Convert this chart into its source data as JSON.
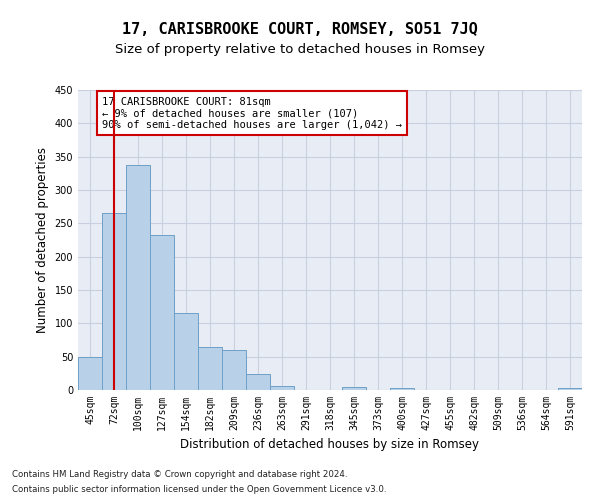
{
  "title": "17, CARISBROOKE COURT, ROMSEY, SO51 7JQ",
  "subtitle": "Size of property relative to detached houses in Romsey",
  "xlabel": "Distribution of detached houses by size in Romsey",
  "ylabel": "Number of detached properties",
  "footnote1": "Contains HM Land Registry data © Crown copyright and database right 2024.",
  "footnote2": "Contains public sector information licensed under the Open Government Licence v3.0.",
  "categories": [
    "45sqm",
    "72sqm",
    "100sqm",
    "127sqm",
    "154sqm",
    "182sqm",
    "209sqm",
    "236sqm",
    "263sqm",
    "291sqm",
    "318sqm",
    "345sqm",
    "373sqm",
    "400sqm",
    "427sqm",
    "455sqm",
    "482sqm",
    "509sqm",
    "536sqm",
    "564sqm",
    "591sqm"
  ],
  "values": [
    50,
    265,
    338,
    232,
    115,
    65,
    60,
    24,
    6,
    0,
    0,
    4,
    0,
    3,
    0,
    0,
    0,
    0,
    0,
    0,
    3
  ],
  "bar_color": "#b8d0e8",
  "bar_edge_color": "#6ca0c8",
  "vline_x": 1,
  "vline_color": "#cc0000",
  "annotation_text": "17 CARISBROOKE COURT: 81sqm\n← 9% of detached houses are smaller (107)\n90% of semi-detached houses are larger (1,042) →",
  "annotation_box_color": "#ffffff",
  "annotation_box_edge": "#cc0000",
  "ylim": [
    0,
    450
  ],
  "yticks": [
    0,
    50,
    100,
    150,
    200,
    250,
    300,
    350,
    400,
    450
  ],
  "background_color": "#ffffff",
  "plot_bg_color": "#e8edf5",
  "grid_color": "#c8d0e0",
  "title_fontsize": 11,
  "subtitle_fontsize": 9.5,
  "axis_label_fontsize": 8.5,
  "tick_fontsize": 7,
  "annot_fontsize": 7.5,
  "footnote_fontsize": 6.2
}
